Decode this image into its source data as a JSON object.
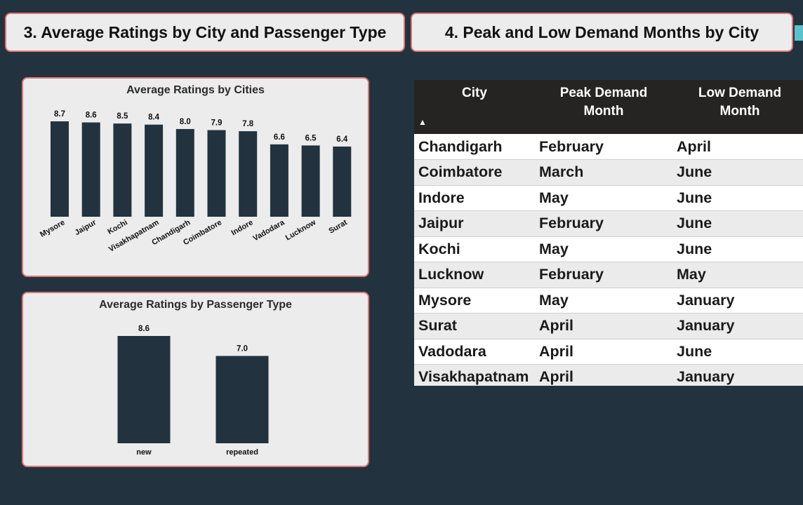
{
  "titles": {
    "section3": "3. Average Ratings by City and Passenger Type",
    "section4": "4. Peak and Low Demand Months by City"
  },
  "chart_data": [
    {
      "type": "bar",
      "title": "Average Ratings by Cities",
      "categories": [
        "Mysore",
        "Jaipur",
        "Kochi",
        "Visakhapatnam",
        "Chandigarh",
        "Coimbatore",
        "Indore",
        "Vadodara",
        "Lucknow",
        "Surat"
      ],
      "values": [
        8.7,
        8.6,
        8.5,
        8.4,
        8.0,
        7.9,
        7.8,
        6.6,
        6.5,
        6.4
      ],
      "ylim": [
        0,
        8.7
      ],
      "grid": false
    },
    {
      "type": "bar",
      "title": "Average Ratings by Passenger Type",
      "categories": [
        "new",
        "repeated"
      ],
      "values": [
        8.6,
        7.0
      ],
      "ylim": [
        0,
        8.6
      ],
      "grid": false
    }
  ],
  "table": {
    "headers": [
      "City",
      "Peak Demand Month",
      "Low Demand Month"
    ],
    "sort_indicator": "▲",
    "rows": [
      [
        "Chandigarh",
        "February",
        "April"
      ],
      [
        "Coimbatore",
        "March",
        "June"
      ],
      [
        "Indore",
        "May",
        "June"
      ],
      [
        "Jaipur",
        "February",
        "June"
      ],
      [
        "Kochi",
        "May",
        "June"
      ],
      [
        "Lucknow",
        "February",
        "May"
      ],
      [
        "Mysore",
        "May",
        "January"
      ],
      [
        "Surat",
        "April",
        "January"
      ],
      [
        "Vadodara",
        "April",
        "June"
      ],
      [
        "Visakhapatnam",
        "April",
        "January"
      ]
    ]
  },
  "colors": {
    "background": "#22333f",
    "bar": "#22333f",
    "card": "#ececec",
    "card_border": "#e07575",
    "accent": "#5bc2cc"
  }
}
